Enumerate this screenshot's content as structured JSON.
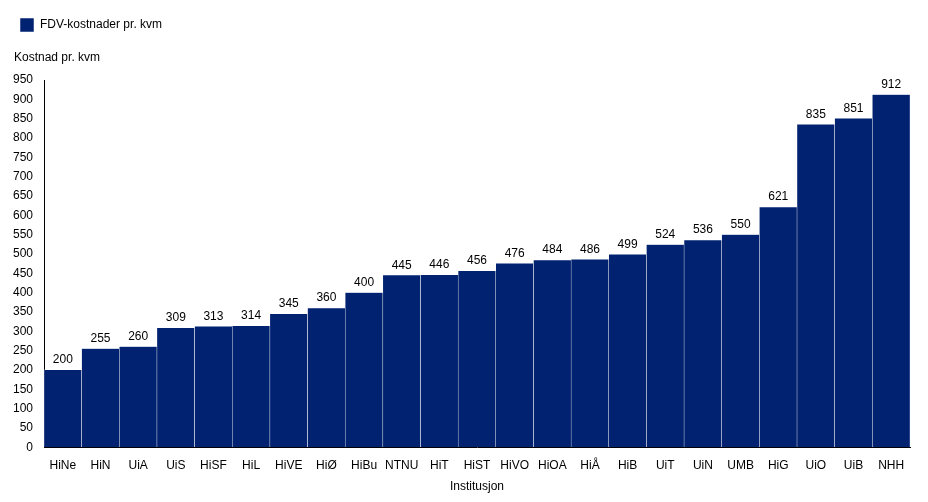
{
  "chart_data": {
    "type": "bar",
    "legend_label": "FDV-kostnader pr. kvm",
    "y_label": "Kostnad pr. kvm",
    "x_label": "Institusjon",
    "categories": [
      "HiNe",
      "HiN",
      "UiA",
      "UiS",
      "HiSF",
      "HiL",
      "HiVE",
      "HiØ",
      "HiBu",
      "NTNU",
      "HiT",
      "HiST",
      "HiVO",
      "HiOA",
      "HiÅ",
      "HiB",
      "UiT",
      "UiN",
      "UMB",
      "HiG",
      "UiO",
      "UiB",
      "NHH"
    ],
    "series": [
      {
        "name": "FDV-kostnader pr. kvm",
        "color": "#002270",
        "values": [
          200,
          255,
          260,
          309,
          313,
          314,
          345,
          360,
          400,
          445,
          446,
          456,
          476,
          484,
          486,
          499,
          524,
          536,
          550,
          621,
          835,
          851,
          912
        ]
      }
    ],
    "ylim": [
      0,
      950
    ],
    "yticks": [
      0,
      50,
      100,
      150,
      200,
      250,
      300,
      350,
      400,
      450,
      500,
      550,
      600,
      650,
      700,
      750,
      800,
      850,
      900,
      950
    ],
    "grid": false,
    "legend": "top-left",
    "data_labels": true
  }
}
